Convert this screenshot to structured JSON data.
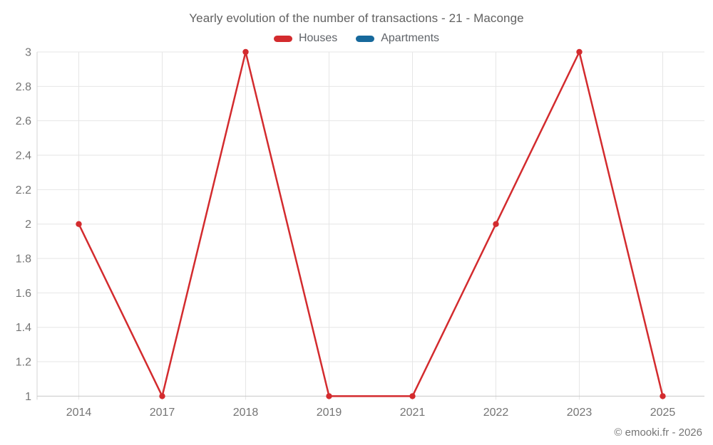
{
  "header": {
    "title": "Yearly evolution of the number of transactions - 21 - Maconge"
  },
  "footer": {
    "credit": "© emooki.fr - 2026"
  },
  "colors": {
    "houses": "#d32b2e",
    "apartments": "#17699c",
    "gridline": "#e6e6e6",
    "axis_line": "#c8c8c8",
    "y_axis_border": "#d6d6d6",
    "tick_label": "#757575",
    "title_text": "#616161",
    "legend_text": "#5f6368"
  },
  "chart_data": {
    "type": "line",
    "title": "Yearly evolution of the number of transactions - 21 - Maconge",
    "xlabel": "",
    "ylabel": "",
    "categories": [
      "2014",
      "2017",
      "2018",
      "2019",
      "2021",
      "2022",
      "2023",
      "2025"
    ],
    "series": [
      {
        "name": "Houses",
        "color": "#d32b2e",
        "values": [
          2,
          1,
          3,
          1,
          1,
          2,
          3,
          1
        ]
      },
      {
        "name": "Apartments",
        "color": "#17699c",
        "values": []
      }
    ],
    "ylim": [
      1,
      3
    ],
    "ytick_step": 0.2,
    "ytick_labels": [
      "1",
      "1.2",
      "1.4",
      "1.6",
      "1.8",
      "2",
      "2.2",
      "2.4",
      "2.6",
      "2.8",
      "3"
    ],
    "grid": true,
    "legend_position": "top",
    "marker": "circle"
  }
}
